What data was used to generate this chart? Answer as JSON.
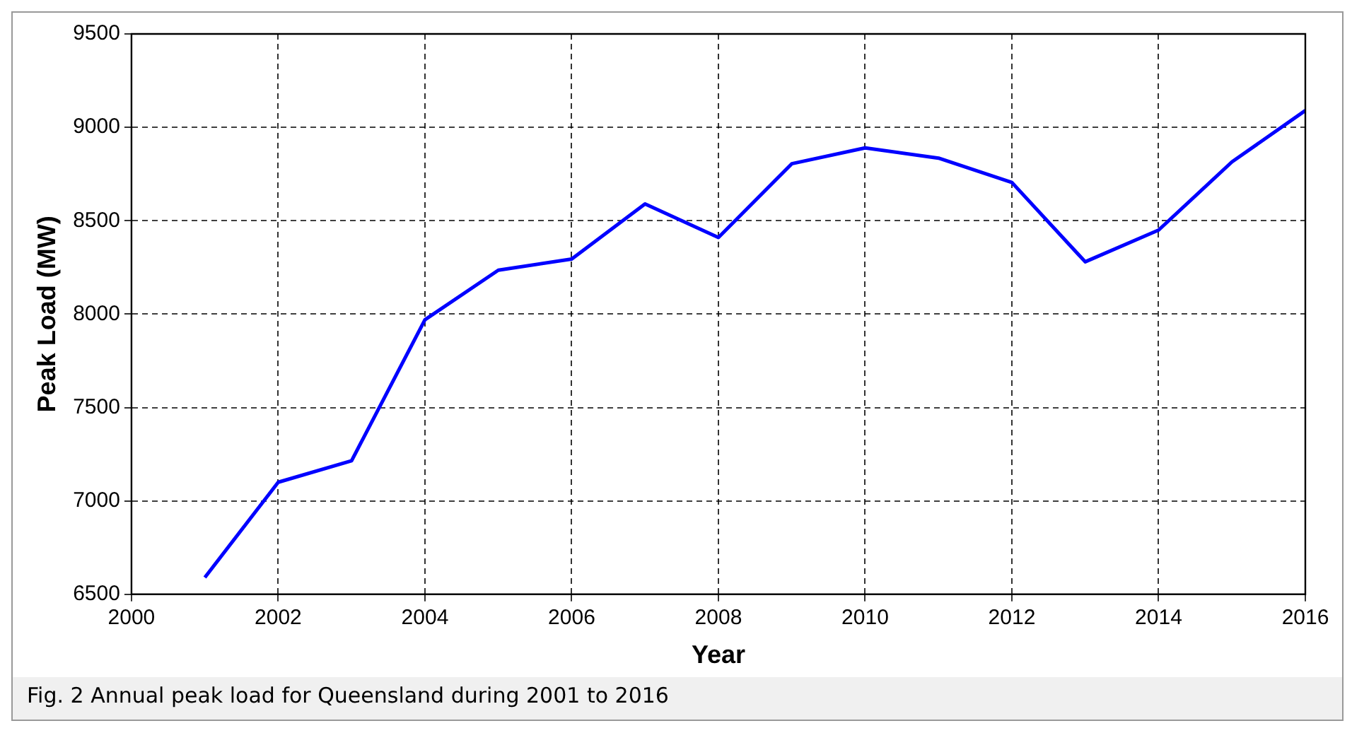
{
  "chart_data": {
    "type": "line",
    "xlabel": "Year",
    "ylabel": "Peak Load (MW)",
    "annotations": [
      "Fig. 2  Annual peak load for Queensland during 2001 to 2016"
    ],
    "x": [
      2001,
      2002,
      2003,
      2004,
      2005,
      2006,
      2007,
      2008,
      2009,
      2010,
      2011,
      2012,
      2013,
      2014,
      2015,
      2016
    ],
    "series": [
      {
        "color": "#0000ff",
        "values": [
          6590,
          7100,
          7215,
          7970,
          8235,
          8295,
          8590,
          8410,
          8805,
          8890,
          8835,
          8705,
          8280,
          8450,
          8815,
          9090
        ]
      }
    ],
    "xlim": [
      2000,
      2016
    ],
    "xticks": [
      2000,
      2002,
      2004,
      2006,
      2008,
      2010,
      2012,
      2014,
      2016
    ],
    "ylim": [
      6500,
      9500
    ],
    "yticks": [
      6500,
      7000,
      7500,
      8000,
      8500,
      9000,
      9500
    ],
    "grid": true,
    "marker": "none",
    "line_style": "solid",
    "legend": false
  }
}
